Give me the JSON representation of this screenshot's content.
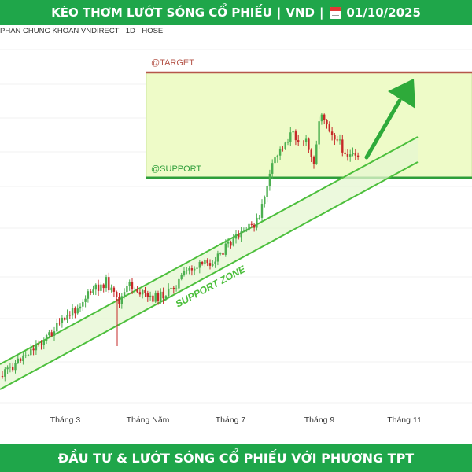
{
  "header": {
    "title": "KÈO THƠM LƯỚT SÓNG CỔ PHIẾU",
    "ticker": "VND",
    "separator": "|",
    "calendar_icon": "calendar-icon",
    "date": "01/10/2025"
  },
  "source_label": "PHAN CHUNG KHOAN VNDIRECT · 1D · HOSE",
  "footer": {
    "slogan": "ĐẦU TƯ & LƯỚT SÓNG CỔ PHIẾU VỚI PHƯƠNG TPT"
  },
  "colors": {
    "banner_green": "#1fa64a",
    "candle_up": "#4caf50",
    "candle_down": "#c62828",
    "target_line": "#b5564a",
    "support_line": "#2e9e3a",
    "target_zone_fill": "#eefbc8",
    "channel_line": "#4cbf3c",
    "arrow": "#2eaa3a"
  },
  "chart_data": {
    "type": "candlestick",
    "symbol": "VND",
    "interval": "1D",
    "exchange": "HOSE",
    "x_axis_labels": [
      "Tháng 3",
      "Tháng Năm",
      "Tháng 7",
      "Tháng 9",
      "Tháng 11"
    ],
    "annotations": {
      "target_label": "@TARGET",
      "support_label": "@SUPPORT",
      "zone_label": "SUPPORT ZONE"
    },
    "price_trend": "uptrend channel from Tháng 2 to Tháng 7, breakout in Tháng 7 to the target zone, pullback toward support in Tháng 9 with projected move up toward target",
    "target_zone": {
      "from": "@SUPPORT",
      "to": "@TARGET",
      "projection_direction": "up"
    }
  }
}
